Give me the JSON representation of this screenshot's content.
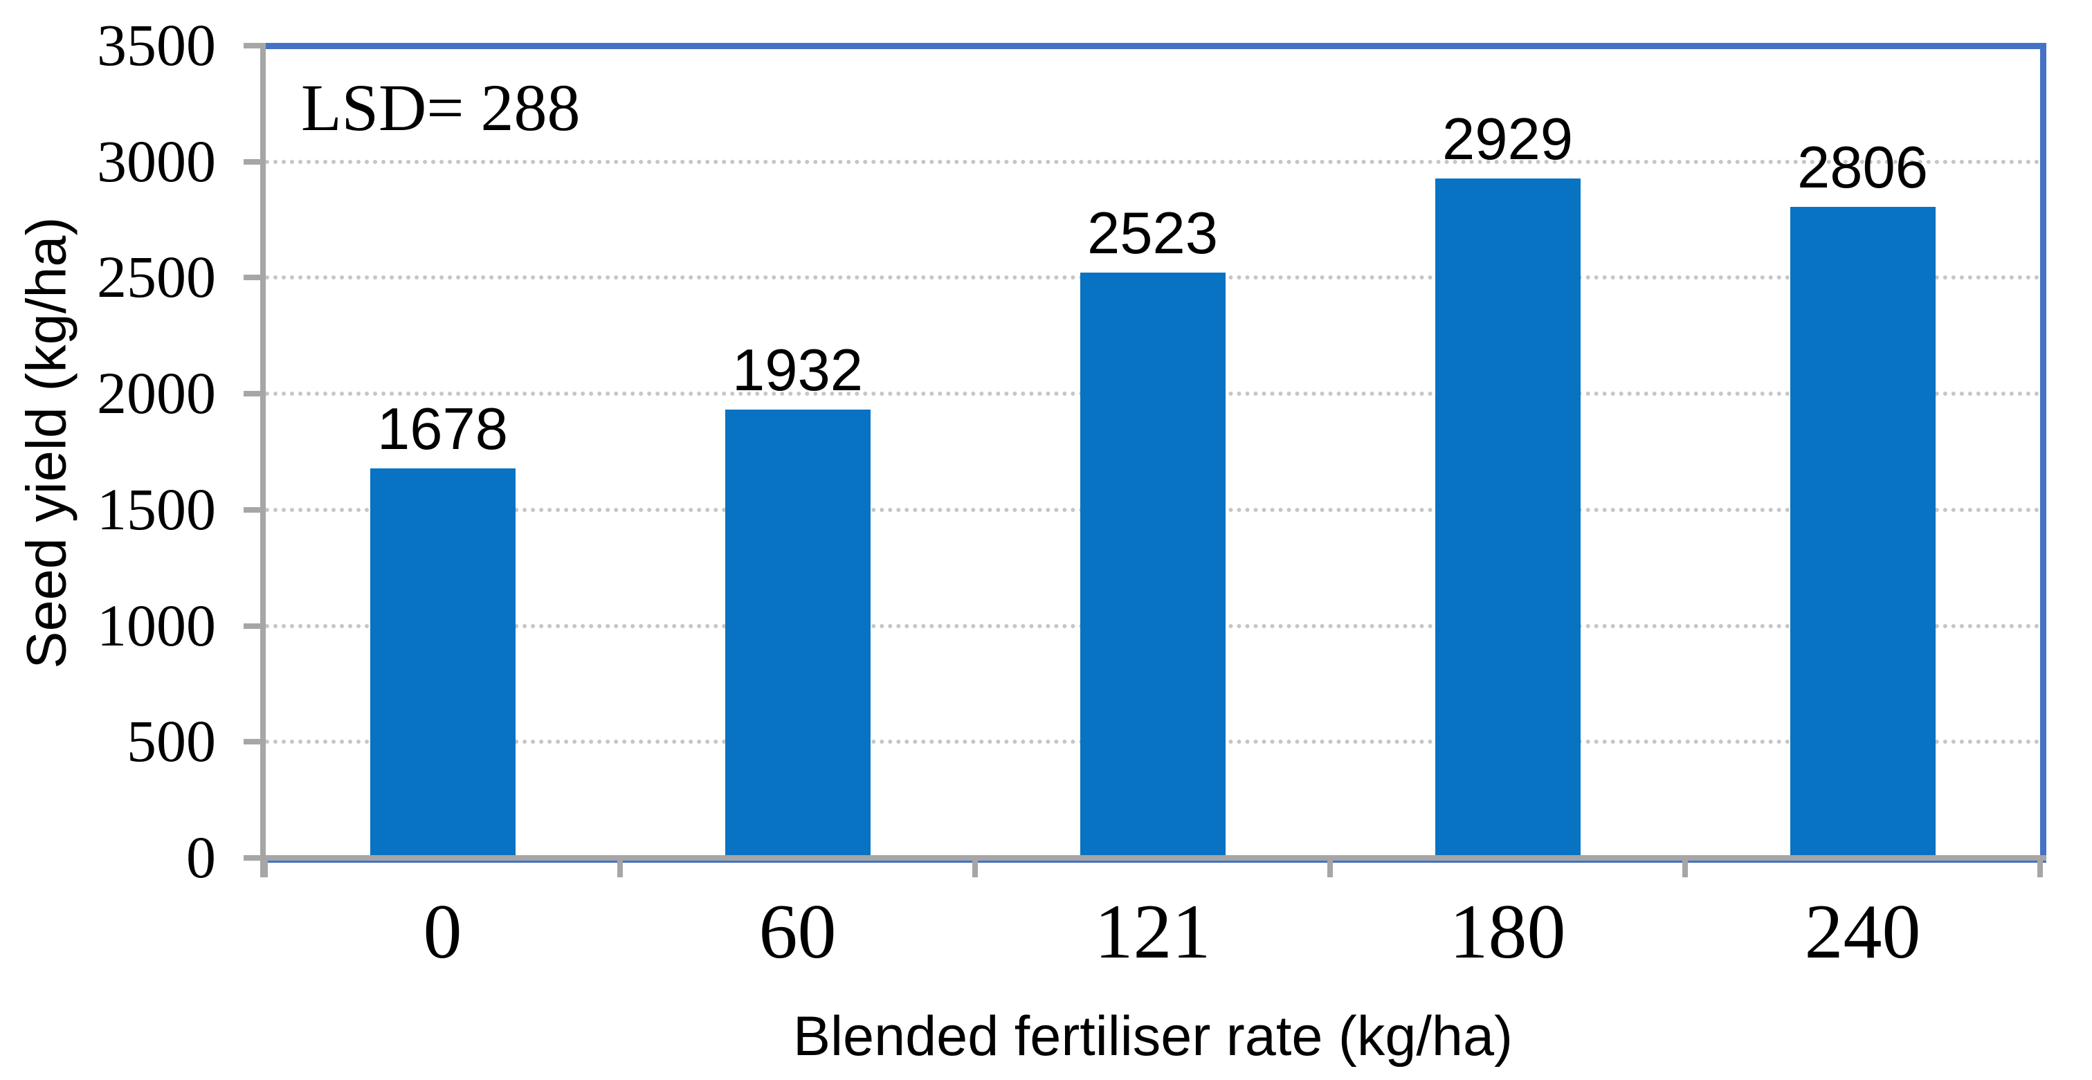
{
  "chart_data": {
    "type": "bar",
    "title": "",
    "annotation": "LSD= 288",
    "xlabel": "Blended fertiliser rate (kg/ha)",
    "ylabel": "Seed yield (kg/ha)",
    "categories": [
      "0",
      "60",
      "121",
      "180",
      "240"
    ],
    "values": [
      1678,
      1932,
      2523,
      2929,
      2806
    ],
    "data_labels": [
      "1678",
      "1932",
      "2523",
      "2929",
      "2806"
    ],
    "ylim": [
      0,
      3500
    ],
    "yticks": [
      0,
      500,
      1000,
      1500,
      2000,
      2500,
      3000,
      3500
    ],
    "ytick_labels": [
      "0",
      "500",
      "1000",
      "1500",
      "2000",
      "2500",
      "3000",
      "3500"
    ],
    "grid": "horizontal-dotted",
    "legend_position": "none",
    "series_name": "Seed yield",
    "colors": {
      "bar": "#0873c2",
      "plot_border": "#4472c4",
      "axis_line": "#a6a6a6",
      "gridline": "#c6c6c6",
      "text": "#000000"
    }
  }
}
